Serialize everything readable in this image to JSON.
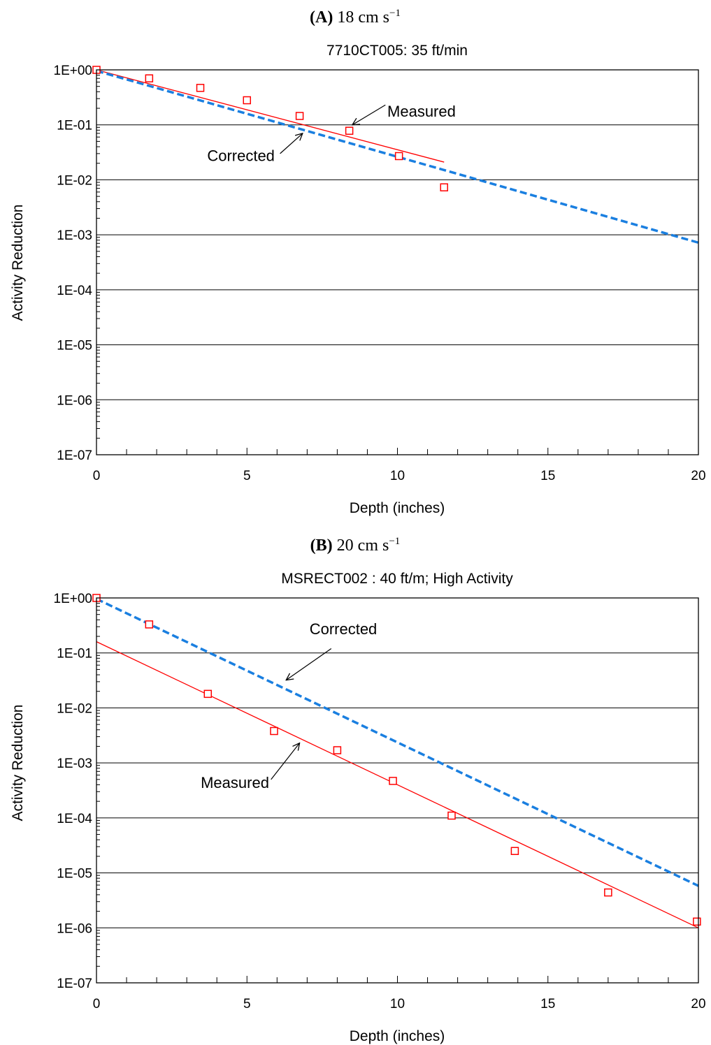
{
  "chart_data": [
    {
      "type": "scatter",
      "panel": {
        "letter": "(A)",
        "speed": "18 cm s",
        "exponent": "−1"
      },
      "title": "7710CT005:  35 ft/min",
      "xlabel": "Depth (inches)",
      "ylabel": "Activity Reduction",
      "xlim": [
        0,
        20
      ],
      "ylim": [
        1e-07,
        1
      ],
      "yscale": "log",
      "x_ticks": [
        0,
        5,
        10,
        15,
        20
      ],
      "x_tick_labels": [
        "0",
        "5",
        "10",
        "15",
        "20"
      ],
      "y_ticks": [
        1,
        0.1,
        0.01,
        0.001,
        0.0001,
        1e-05,
        1e-06,
        1e-07
      ],
      "y_tick_labels": [
        "1E+00",
        "1E-01",
        "1E-02",
        "1E-03",
        "1E-04",
        "1E-05",
        "1E-06",
        "1E-07"
      ],
      "grid": "horizontal",
      "colors": {
        "points": "#ff0000",
        "measured": "#ff0000",
        "corrected": "#1a7fe0"
      },
      "points": [
        {
          "x": 0,
          "y": 1.0
        },
        {
          "x": 1.75,
          "y": 0.7
        },
        {
          "x": 3.45,
          "y": 0.47
        },
        {
          "x": 5.0,
          "y": 0.28
        },
        {
          "x": 6.75,
          "y": 0.145
        },
        {
          "x": 8.4,
          "y": 0.078
        },
        {
          "x": 10.05,
          "y": 0.027
        },
        {
          "x": 11.55,
          "y": 0.0073
        }
      ],
      "lines": [
        {
          "key": "measured",
          "label": "Measured",
          "style": "solid",
          "x": [
            0,
            11.55
          ],
          "y": [
            1.0,
            0.021
          ]
        },
        {
          "key": "corrected",
          "label": "Corrected",
          "style": "dashed",
          "x": [
            0,
            20
          ],
          "y": [
            0.96,
            0.00072
          ]
        }
      ],
      "annotations": [
        {
          "key": "measured",
          "text": "Measured",
          "text_x": 10.8,
          "text_y": 0.14,
          "from_x": 9.6,
          "from_y": 0.23,
          "to_x": 8.5,
          "to_y": 0.1
        },
        {
          "key": "corrected",
          "text": "Corrected",
          "text_x": 4.8,
          "text_y": 0.022,
          "from_x": 6.1,
          "from_y": 0.03,
          "to_x": 6.85,
          "to_y": 0.07
        }
      ]
    },
    {
      "type": "scatter",
      "panel": {
        "letter": "(B)",
        "speed": "20 cm s",
        "exponent": "−1"
      },
      "title": "MSRECT002 :  40 ft/m; High Activity",
      "xlabel": "Depth (inches)",
      "ylabel": "Activity Reduction",
      "xlim": [
        0,
        20
      ],
      "ylim": [
        1e-07,
        1
      ],
      "yscale": "log",
      "x_ticks": [
        0,
        5,
        10,
        15,
        20
      ],
      "x_tick_labels": [
        "0",
        "5",
        "10",
        "15",
        "20"
      ],
      "y_ticks": [
        1,
        0.1,
        0.01,
        0.001,
        0.0001,
        1e-05,
        1e-06,
        1e-07
      ],
      "y_tick_labels": [
        "1E+00",
        "1E-01",
        "1E-02",
        "1E-03",
        "1E-04",
        "1E-05",
        "1E-06",
        "1E-07"
      ],
      "grid": "horizontal",
      "colors": {
        "points": "#ff0000",
        "measured": "#ff0000",
        "corrected": "#1a7fe0"
      },
      "points": [
        {
          "x": 0,
          "y": 1.0
        },
        {
          "x": 1.75,
          "y": 0.33
        },
        {
          "x": 3.7,
          "y": 0.018
        },
        {
          "x": 5.9,
          "y": 0.0038
        },
        {
          "x": 8.0,
          "y": 0.0017
        },
        {
          "x": 9.85,
          "y": 0.00047
        },
        {
          "x": 11.8,
          "y": 0.00011
        },
        {
          "x": 13.9,
          "y": 2.5e-05
        },
        {
          "x": 17.0,
          "y": 4.4e-06
        },
        {
          "x": 19.95,
          "y": 1.3e-06
        }
      ],
      "lines": [
        {
          "key": "measured",
          "label": "Measured",
          "style": "solid",
          "x": [
            0,
            20
          ],
          "y": [
            0.16,
            1e-06
          ]
        },
        {
          "key": "corrected",
          "label": "Corrected",
          "style": "dashed",
          "x": [
            0,
            20
          ],
          "y": [
            0.96,
            5.8e-06
          ]
        }
      ],
      "annotations": [
        {
          "key": "corrected",
          "text": "Corrected",
          "text_x": 8.2,
          "text_y": 0.22,
          "from_x": 7.8,
          "from_y": 0.12,
          "to_x": 6.3,
          "to_y": 0.032
        },
        {
          "key": "measured",
          "text": "Measured",
          "text_x": 4.6,
          "text_y": 0.00035,
          "from_x": 5.8,
          "from_y": 0.0005,
          "to_x": 6.75,
          "to_y": 0.0023
        }
      ]
    }
  ]
}
